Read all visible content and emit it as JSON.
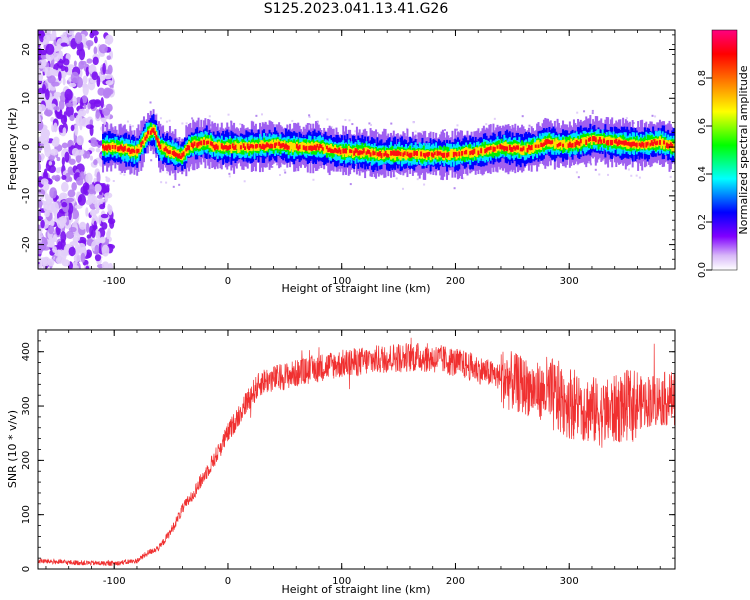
{
  "title": "S125.2023.041.13.41.G26",
  "chart_data": [
    {
      "type": "heatmap",
      "xlabel": "Height of straight line (km)",
      "ylabel": "Frequency (Hz)",
      "xlim": [
        -167,
        393
      ],
      "ylim": [
        -25,
        24
      ],
      "xticks": [
        -100,
        0,
        100,
        200,
        300
      ],
      "yticks": [
        -20,
        -10,
        0,
        10,
        20
      ],
      "colorbar": {
        "label": "Normalized spectral amplitude",
        "range": [
          0,
          1
        ],
        "ticks": [
          "0.0",
          "0.2",
          "0.4",
          "0.6",
          "0.8"
        ],
        "colors": [
          "#ffffff",
          "#d8b8f8",
          "#8000ff",
          "#0000ff",
          "#00ffff",
          "#00ff00",
          "#ffff00",
          "#ff8000",
          "#ff0000",
          "#ff0080"
        ]
      },
      "ridge": {
        "x": [
          -110,
          -100,
          -90,
          -80,
          -70,
          -65,
          -60,
          -50,
          -40,
          -35,
          -30,
          -20,
          -10,
          0,
          20,
          40,
          60,
          80,
          100,
          120,
          130,
          140,
          160,
          180,
          200,
          220,
          240,
          260,
          270,
          280,
          290,
          300,
          320,
          340,
          360,
          380,
          393
        ],
        "y": [
          0,
          0,
          -0.5,
          -1,
          3,
          3.5,
          0,
          -1,
          -2,
          0,
          0.5,
          1,
          0,
          0,
          0,
          0.5,
          0,
          0,
          -1,
          -1,
          -1.5,
          -1.5,
          -1.5,
          -1.5,
          -1.5,
          -1,
          0,
          -0.5,
          0,
          1,
          0.5,
          0.5,
          1.5,
          1,
          0.5,
          1,
          0
        ]
      }
    },
    {
      "type": "line",
      "xlabel": "Height of straight line (km)",
      "ylabel": "SNR (10 * v/v)",
      "xlim": [
        -167,
        393
      ],
      "ylim": [
        0,
        440
      ],
      "xticks": [
        -100,
        0,
        100,
        200,
        300
      ],
      "yticks": [
        0,
        100,
        200,
        300,
        400
      ],
      "color": "#f03030",
      "envelope": {
        "x": [
          -167,
          -140,
          -100,
          -80,
          -70,
          -60,
          -50,
          -40,
          -30,
          -20,
          -10,
          0,
          10,
          20,
          30,
          50,
          70,
          90,
          110,
          130,
          150,
          170,
          190,
          210,
          230,
          250,
          270,
          290,
          310,
          330,
          350,
          370,
          393
        ],
        "y": [
          15,
          12,
          10,
          15,
          30,
          40,
          70,
          110,
          140,
          175,
          210,
          250,
          285,
          320,
          345,
          355,
          365,
          375,
          380,
          385,
          390,
          390,
          385,
          375,
          360,
          345,
          330,
          315,
          300,
          285,
          300,
          310,
          315
        ]
      }
    }
  ]
}
